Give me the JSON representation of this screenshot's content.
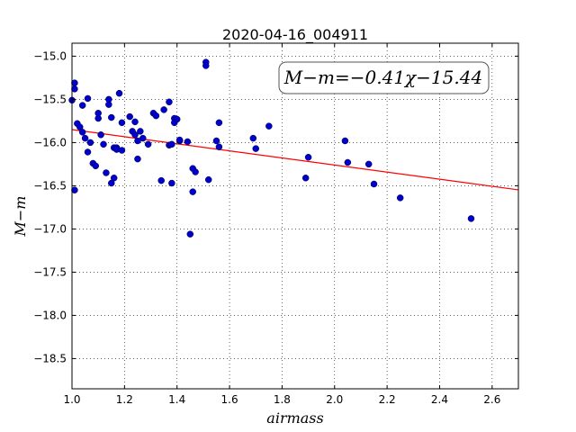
{
  "chart_data": {
    "type": "scatter",
    "title": "2020-04-16_004911",
    "xlabel": "airmass",
    "ylabel": "M−m",
    "xlim": [
      1.0,
      2.7
    ],
    "ylim": [
      -18.85,
      -14.85
    ],
    "y_inverted": true,
    "grid": true,
    "xticks": [
      "1.0",
      "1.2",
      "1.4",
      "1.6",
      "1.8",
      "2.0",
      "2.2",
      "2.4",
      "2.6"
    ],
    "yticks": [
      "−15.0",
      "−15.5",
      "−16.0",
      "−16.5",
      "−17.0",
      "−17.5",
      "−18.0",
      "−18.5"
    ],
    "annotation": "M−m=−0.41χ−15.44",
    "fit": {
      "slope": -0.41,
      "intercept": -15.44,
      "color": "#ff0000"
    },
    "point_color": "#0000cc",
    "points": [
      [
        1.0,
        -15.51
      ],
      [
        1.01,
        -16.55
      ],
      [
        1.01,
        -15.31
      ],
      [
        1.01,
        -15.38
      ],
      [
        1.02,
        -15.78
      ],
      [
        1.03,
        -15.82
      ],
      [
        1.04,
        -15.88
      ],
      [
        1.04,
        -15.57
      ],
      [
        1.05,
        -15.95
      ],
      [
        1.06,
        -16.11
      ],
      [
        1.06,
        -15.49
      ],
      [
        1.07,
        -16.0
      ],
      [
        1.08,
        -16.24
      ],
      [
        1.09,
        -16.27
      ],
      [
        1.1,
        -15.66
      ],
      [
        1.1,
        -15.72
      ],
      [
        1.11,
        -15.91
      ],
      [
        1.12,
        -16.02
      ],
      [
        1.13,
        -16.35
      ],
      [
        1.14,
        -15.56
      ],
      [
        1.14,
        -15.5
      ],
      [
        1.15,
        -15.71
      ],
      [
        1.15,
        -16.47
      ],
      [
        1.16,
        -16.41
      ],
      [
        1.16,
        -16.06
      ],
      [
        1.17,
        -16.06
      ],
      [
        1.17,
        -16.08
      ],
      [
        1.18,
        -15.43
      ],
      [
        1.19,
        -16.09
      ],
      [
        1.19,
        -15.77
      ],
      [
        1.22,
        -15.7
      ],
      [
        1.23,
        -15.87
      ],
      [
        1.24,
        -15.76
      ],
      [
        1.24,
        -15.91
      ],
      [
        1.25,
        -16.19
      ],
      [
        1.25,
        -15.98
      ],
      [
        1.26,
        -15.87
      ],
      [
        1.27,
        -15.95
      ],
      [
        1.29,
        -16.02
      ],
      [
        1.31,
        -15.66
      ],
      [
        1.32,
        -15.69
      ],
      [
        1.34,
        -16.44
      ],
      [
        1.35,
        -15.62
      ],
      [
        1.37,
        -16.03
      ],
      [
        1.37,
        -15.53
      ],
      [
        1.38,
        -16.47
      ],
      [
        1.38,
        -16.02
      ],
      [
        1.39,
        -15.72
      ],
      [
        1.39,
        -15.77
      ],
      [
        1.4,
        -15.73
      ],
      [
        1.41,
        -15.98
      ],
      [
        1.41,
        -15.97
      ],
      [
        1.44,
        -15.99
      ],
      [
        1.45,
        -17.06
      ],
      [
        1.46,
        -16.3
      ],
      [
        1.46,
        -16.57
      ],
      [
        1.47,
        -16.34
      ],
      [
        1.51,
        -15.07
      ],
      [
        1.51,
        -15.11
      ],
      [
        1.52,
        -16.43
      ],
      [
        1.55,
        -15.98
      ],
      [
        1.56,
        -16.05
      ],
      [
        1.56,
        -15.77
      ],
      [
        1.69,
        -15.95
      ],
      [
        1.7,
        -16.07
      ],
      [
        1.75,
        -15.81
      ],
      [
        1.89,
        -16.41
      ],
      [
        1.9,
        -16.17
      ],
      [
        2.04,
        -15.98
      ],
      [
        2.05,
        -16.23
      ],
      [
        2.13,
        -16.25
      ],
      [
        2.15,
        -16.48
      ],
      [
        2.25,
        -16.64
      ],
      [
        2.52,
        -16.88
      ]
    ]
  }
}
